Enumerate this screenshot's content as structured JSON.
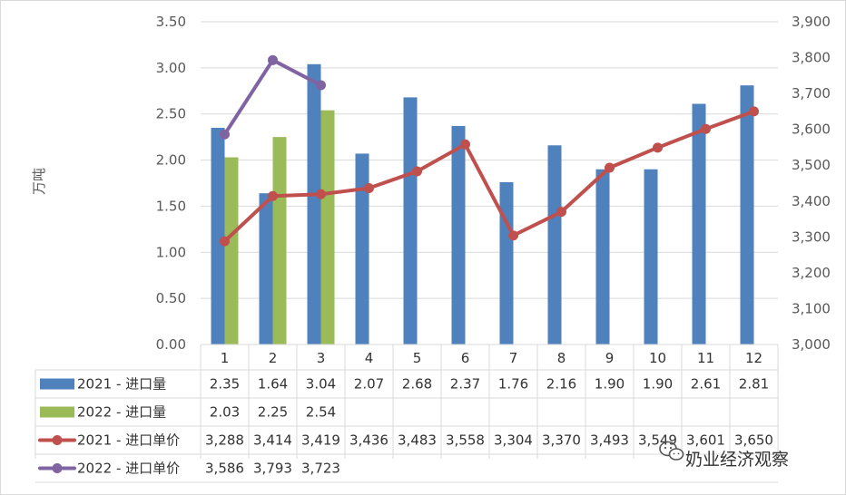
{
  "chart_data": {
    "type": "bar",
    "categories": [
      "1",
      "2",
      "3",
      "4",
      "5",
      "6",
      "7",
      "8",
      "9",
      "10",
      "11",
      "12"
    ],
    "ylabel": "万吨",
    "ylim": [
      0,
      3.5
    ],
    "ytick_labels": [
      "0.00",
      "0.50",
      "1.00",
      "1.50",
      "2.00",
      "2.50",
      "3.00",
      "3.50"
    ],
    "y2lim": [
      3000,
      3900
    ],
    "y2tick_labels": [
      "3,000",
      "3,100",
      "3,200",
      "3,300",
      "3,400",
      "3,500",
      "3,600",
      "3,700",
      "3,800",
      "3,900"
    ],
    "grid": true,
    "bar_series": [
      {
        "name": "2021 - 进口量",
        "color": "#4f81bd",
        "values": [
          2.35,
          1.64,
          3.04,
          2.07,
          2.68,
          2.37,
          1.76,
          2.16,
          1.9,
          1.9,
          2.61,
          2.81
        ],
        "labels": [
          "2.35",
          "1.64",
          "3.04",
          "2.07",
          "2.68",
          "2.37",
          "1.76",
          "2.16",
          "1.90",
          "1.90",
          "2.61",
          "2.81"
        ]
      },
      {
        "name": "2022 - 进口量",
        "color": "#9bbb59",
        "values": [
          2.03,
          2.25,
          2.54,
          null,
          null,
          null,
          null,
          null,
          null,
          null,
          null,
          null
        ],
        "labels": [
          "2.03",
          "2.25",
          "2.54",
          "",
          "",
          "",
          "",
          "",
          "",
          "",
          "",
          ""
        ]
      }
    ],
    "line_series": [
      {
        "name": "2021 - 进口单价",
        "color": "#c0504d",
        "values": [
          3288,
          3414,
          3419,
          3436,
          3483,
          3558,
          3304,
          3370,
          3493,
          3549,
          3601,
          3650
        ],
        "labels": [
          "3,288",
          "3,414",
          "3,419",
          "3,436",
          "3,483",
          "3,558",
          "3,304",
          "3,370",
          "3,493",
          "3,549",
          "3,601",
          "3,650"
        ]
      },
      {
        "name": "2022 - 进口单价",
        "color": "#8064a2",
        "values": [
          3586,
          3793,
          3723,
          null,
          null,
          null,
          null,
          null,
          null,
          null,
          null,
          null
        ],
        "labels": [
          "3,586",
          "3,793",
          "3,723",
          "",
          "",
          "",
          "",
          "",
          "",
          "",
          "",
          ""
        ]
      }
    ]
  },
  "watermark": "奶业经济观察"
}
